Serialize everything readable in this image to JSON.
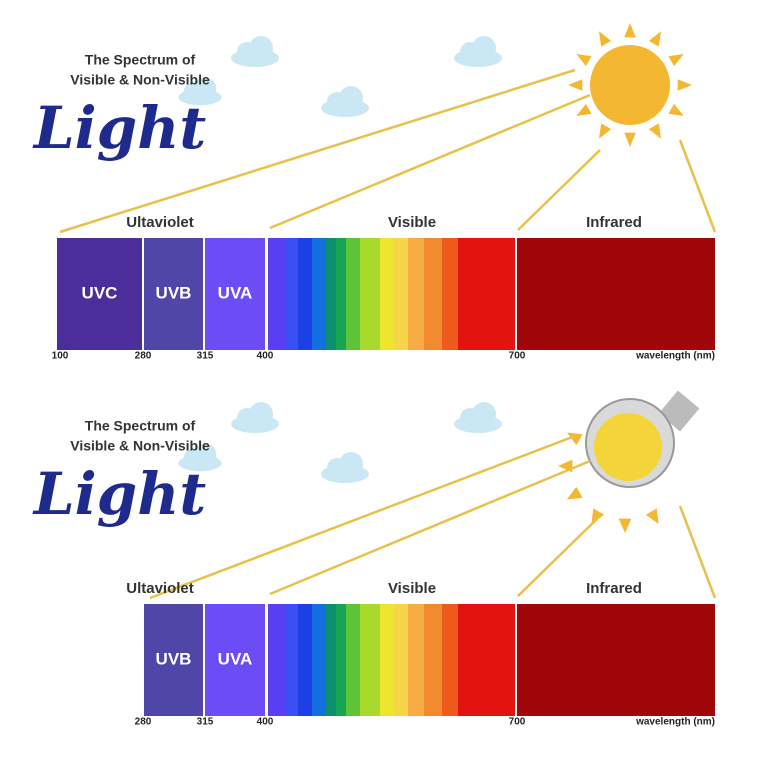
{
  "panels": [
    {
      "title_lines": [
        "The Spectrum of",
        "Visible & Non-Visible"
      ],
      "script_title": "Light",
      "regions": [
        "Ultaviolet",
        "Visible",
        "Infrared"
      ],
      "bands": [
        "UVC",
        "UVB",
        "UVA"
      ],
      "ticks": [
        "100",
        "280",
        "315",
        "400",
        "700"
      ],
      "axis_label": "wavelength (nm)"
    },
    {
      "title_lines": [
        "The Spectrum of",
        "Visible & Non-Visible"
      ],
      "script_title": "Light",
      "regions": [
        "Ultaviolet",
        "Visible",
        "Infrared"
      ],
      "bands": [
        "UVB",
        "UVA"
      ],
      "ticks": [
        "280",
        "315",
        "400",
        "700"
      ],
      "axis_label": "wavelength (nm)"
    }
  ]
}
